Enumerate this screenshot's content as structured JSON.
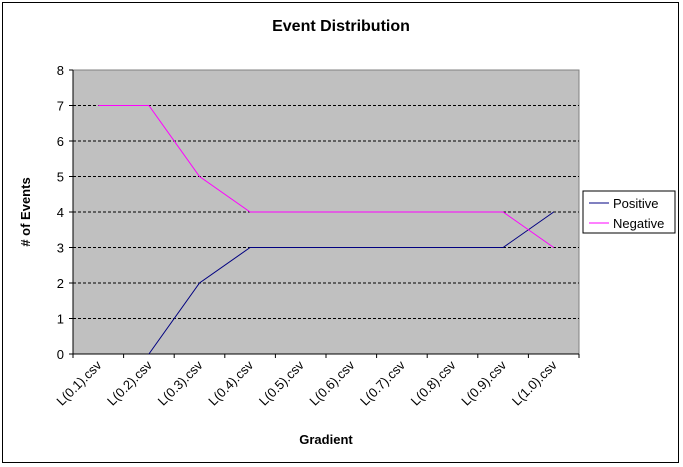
{
  "chart_data": {
    "type": "line",
    "title": "Event Distribution",
    "xlabel": "Gradient",
    "ylabel": "# of Events",
    "categories": [
      "L(0.1).csv",
      "L(0.2).csv",
      "L(0.3).csv",
      "L(0.4).csv",
      "L(0.5).csv",
      "L(0.6).csv",
      "L(0.7).csv",
      "L(0.8).csv",
      "L(0.9).csv",
      "L(1.0).csv"
    ],
    "ylim": [
      0,
      8
    ],
    "yticks": [
      "0",
      "1",
      "2",
      "3",
      "4",
      "5",
      "6",
      "7",
      "8"
    ],
    "grid": true,
    "plot_background": "#c0c0c0",
    "legend_position": "right",
    "series": [
      {
        "name": "Positive",
        "color": "#000080",
        "values": [
          null,
          0,
          2,
          3,
          3,
          3,
          3,
          3,
          3,
          4
        ]
      },
      {
        "name": "Negative",
        "color": "#ff00ff",
        "values": [
          7,
          7,
          5,
          4,
          4,
          4,
          4,
          4,
          4,
          3
        ]
      }
    ]
  }
}
